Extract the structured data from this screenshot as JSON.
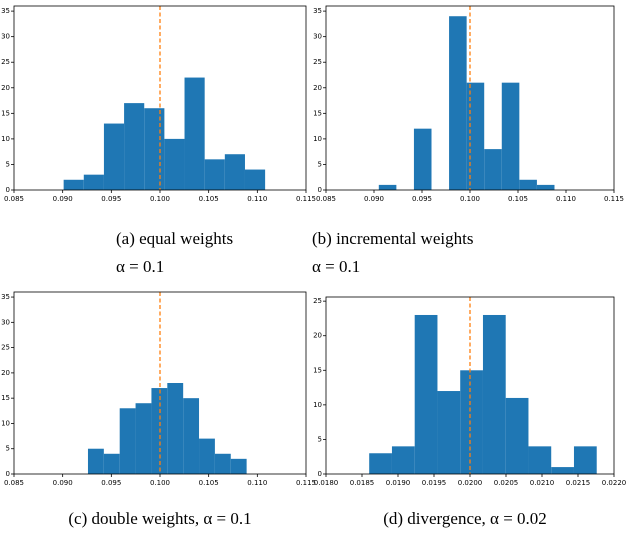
{
  "chart_data": [
    {
      "type": "histogram",
      "caption": [
        "(a) equal weights",
        "α = 0.1"
      ],
      "color": "#1f77b4",
      "vline": 0.1,
      "vline_color": "#ff7f0e",
      "bins": [
        0.0901,
        0.09217,
        0.09424,
        0.09631,
        0.09838,
        0.10045,
        0.10252,
        0.10459,
        0.10666,
        0.10873,
        0.1108
      ],
      "values": [
        2,
        3,
        13,
        17,
        16,
        10,
        22,
        6,
        7,
        4
      ],
      "xlim": [
        0.085,
        0.115
      ],
      "xticks": [
        0.085,
        {
          "value": 0.09,
          "label": "0.090"
        },
        0.095,
        {
          "value": 0.1,
          "label": "0.100"
        },
        0.105,
        {
          "value": 0.11,
          "label": "0.110"
        },
        0.115
      ],
      "ylim": [
        0,
        36
      ],
      "yticks": [
        0,
        5,
        10,
        15,
        20,
        25,
        30,
        35
      ]
    },
    {
      "type": "histogram",
      "caption": [
        "(b) incremental weights",
        "α = 0.1"
      ],
      "color": "#1f77b4",
      "vline": 0.1,
      "vline_color": "#ff7f0e",
      "bins": [
        0.0905,
        0.09233,
        0.09416,
        0.09599,
        0.09782,
        0.09965,
        0.10148,
        0.10331,
        0.10514,
        0.10697,
        0.1088
      ],
      "values": [
        1,
        0,
        12,
        0,
        34,
        21,
        8,
        21,
        2,
        1
      ],
      "xlim": [
        0.085,
        0.115
      ],
      "xticks": [
        0.085,
        {
          "value": 0.09,
          "label": "0.090"
        },
        0.095,
        {
          "value": 0.1,
          "label": "0.100"
        },
        0.105,
        {
          "value": 0.11,
          "label": "0.110"
        },
        0.115
      ],
      "ylim": [
        0,
        36
      ],
      "yticks": [
        0,
        5,
        10,
        15,
        20,
        25,
        30,
        35
      ]
    },
    {
      "type": "histogram",
      "caption": [
        "(c) double weights, α = 0.1"
      ],
      "color": "#1f77b4",
      "vline": 0.1,
      "vline_color": "#ff7f0e",
      "bins": [
        0.0926,
        0.09423,
        0.09586,
        0.09749,
        0.09912,
        0.10075,
        0.10238,
        0.10401,
        0.10564,
        0.10727,
        0.1089
      ],
      "values": [
        5,
        4,
        13,
        14,
        17,
        18,
        15,
        7,
        4,
        3
      ],
      "xlim": [
        0.085,
        0.115
      ],
      "xticks": [
        0.085,
        {
          "value": 0.09,
          "label": "0.090"
        },
        0.095,
        {
          "value": 0.1,
          "label": "0.100"
        },
        0.105,
        {
          "value": 0.11,
          "label": "0.110"
        },
        0.115
      ],
      "ylim": [
        0,
        36
      ],
      "yticks": [
        0,
        5,
        10,
        15,
        20,
        25,
        30,
        35
      ]
    },
    {
      "type": "histogram",
      "caption": [
        "(d) divergence, α = 0.02"
      ],
      "color": "#1f77b4",
      "vline": 0.02,
      "vline_color": "#ff7f0e",
      "bins": [
        0.0186,
        0.018916,
        0.019232,
        0.019548,
        0.019864,
        0.02018,
        0.020496,
        0.020812,
        0.021128,
        0.021444,
        0.02176
      ],
      "values": [
        3,
        4,
        23,
        12,
        15,
        23,
        11,
        4,
        1,
        4
      ],
      "xlim": [
        0.018,
        0.022
      ],
      "xticks": [
        {
          "value": 0.018,
          "label": "0.0180"
        },
        0.0185,
        {
          "value": 0.019,
          "label": "0.0190"
        },
        0.0195,
        {
          "value": 0.02,
          "label": "0.0200"
        },
        0.0205,
        {
          "value": 0.021,
          "label": "0.0210"
        },
        0.0215,
        {
          "value": 0.022,
          "label": "0.0220"
        }
      ],
      "ylim": [
        0,
        25.6
      ],
      "yticks": [
        0,
        5,
        10,
        15,
        20,
        25
      ]
    }
  ]
}
